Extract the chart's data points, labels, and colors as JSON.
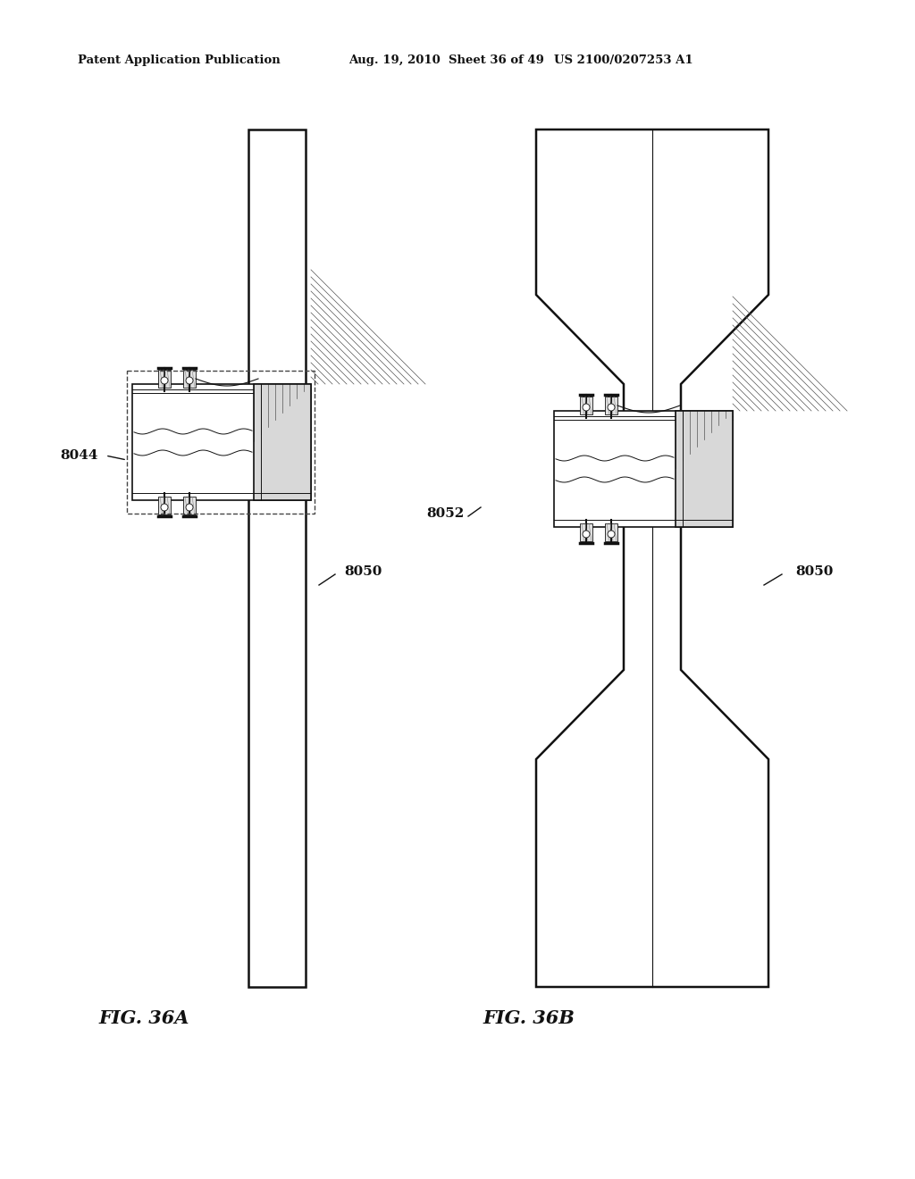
{
  "bg_color": "#ffffff",
  "header_text": "Patent Application Publication    Aug. 19, 2010  Sheet 36 of 49    US 2100/0207253 A1",
  "header_left": "Patent Application Publication",
  "header_mid": "Aug. 19, 2010  Sheet 36 of 49",
  "header_right": "US 2100/0207253 A1",
  "fig36A_label": "FIG. 36A",
  "fig36B_label": "FIG. 36B",
  "label_8044": "8044",
  "label_8050_A": "8050",
  "label_8052": "8052",
  "label_8050_B": "8050"
}
